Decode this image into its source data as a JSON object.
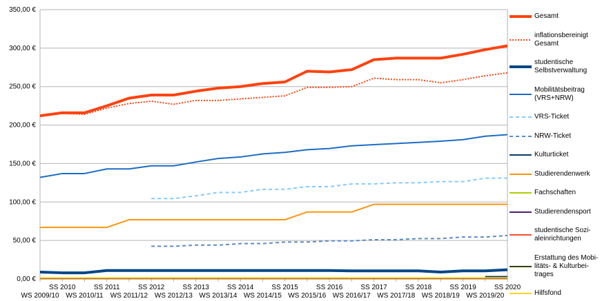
{
  "chart_data": {
    "type": "line",
    "categories": [
      "WS 2009/10",
      "SS 2010",
      "WS 2010/11",
      "SS 2011",
      "WS 2011/12",
      "SS 2012",
      "WS 2012/13",
      "SS 2013",
      "WS 2013/14",
      "SS 2014",
      "WS 2014/15",
      "SS 2015",
      "WS 2015/16",
      "SS 2016",
      "WS 2016/17",
      "SS 2017",
      "WS 2017/18",
      "SS 2018",
      "WS 2018/19",
      "SS 2019",
      "WS 2019/20",
      "SS 2020"
    ],
    "ylim": [
      0,
      350
    ],
    "yticks": [
      {
        "value": 0,
        "label": "0,00 €"
      },
      {
        "value": 50,
        "label": "50,00 €"
      },
      {
        "value": 100,
        "label": "100,00 €"
      },
      {
        "value": 150,
        "label": "150,00 €"
      },
      {
        "value": 200,
        "label": "200,00 €"
      },
      {
        "value": 250,
        "label": "250,00 €"
      },
      {
        "value": 300,
        "label": "300,00 €"
      },
      {
        "value": 350,
        "label": "350,00 €"
      }
    ],
    "grid": true,
    "legend": "right",
    "series": [
      {
        "name": "Gesamt",
        "color": "#ff420e",
        "width": 4,
        "dash": "solid",
        "values": [
          212,
          216,
          216,
          225,
          235,
          239,
          239,
          244,
          248,
          250,
          254,
          256,
          270,
          269,
          272,
          285,
          287,
          287,
          287,
          292,
          298,
          303
        ]
      },
      {
        "name": "inflationsbereinigt\nGesamt",
        "color": "#ff420e",
        "width": 2,
        "dash": "dotted",
        "values": [
          212,
          215,
          214,
          222,
          228,
          231,
          227,
          232,
          232,
          234,
          236,
          238,
          249,
          249,
          250,
          261,
          259,
          259,
          255,
          259,
          264,
          268
        ]
      },
      {
        "name": "studentische\nSelbstverwaltung",
        "color": "#004586",
        "width": 4,
        "dash": "solid",
        "values": [
          9,
          8,
          8,
          11,
          11,
          11,
          11,
          11,
          11,
          11,
          11,
          11,
          11,
          11,
          10.5,
          10.5,
          10.5,
          10.5,
          9,
          10.5,
          10.5,
          12
        ]
      },
      {
        "name": "Mobilitätsbeitrag\n(VRS+NRW)",
        "color": "#1c6cc4",
        "width": 2,
        "dash": "solid",
        "values": [
          132,
          137,
          137,
          143,
          143,
          147,
          147,
          152,
          156.5,
          158.5,
          162.5,
          164.5,
          168,
          169.5,
          173,
          174.5,
          176,
          177.5,
          179,
          181,
          185.5,
          187.5
        ]
      },
      {
        "name": "VRS-Ticket",
        "color": "#83caff",
        "width": 2,
        "dash": "dashed",
        "values": [
          null,
          null,
          null,
          null,
          null,
          104.5,
          104.5,
          108,
          112.5,
          112.5,
          116.5,
          116.5,
          120,
          120,
          123.5,
          123.5,
          125,
          125,
          126.5,
          126.5,
          131,
          131
        ]
      },
      {
        "name": "NRW-Ticket",
        "color": "#5b8ac6",
        "width": 2,
        "dash": "dashed",
        "values": [
          null,
          null,
          null,
          null,
          null,
          42.5,
          42.5,
          44,
          44,
          46,
          46,
          48,
          48,
          49.5,
          49.5,
          51,
          51,
          52.5,
          52.5,
          54.5,
          54.5,
          56.5
        ]
      },
      {
        "name": "Kulturticket",
        "color": "#0d3a6b",
        "width": 2,
        "dash": "solid",
        "values": [
          null,
          null,
          null,
          null,
          null,
          null,
          null,
          null,
          null,
          null,
          null,
          null,
          null,
          null,
          null,
          null,
          null,
          null,
          null,
          null,
          3,
          3
        ]
      },
      {
        "name": "Studierendenwerk",
        "color": "#ff950e",
        "width": 2,
        "dash": "solid",
        "values": [
          67,
          67,
          67,
          67,
          77,
          77,
          77,
          77,
          77,
          77,
          77,
          77,
          87,
          87,
          87,
          97,
          97,
          97,
          97,
          97,
          97,
          97
        ]
      },
      {
        "name": "Fachschaften",
        "color": "#aecf00",
        "width": 2,
        "dash": "solid",
        "values": [
          1,
          1,
          1,
          1,
          1,
          1,
          1,
          1,
          1,
          1,
          1,
          1,
          1,
          1,
          1,
          1,
          1,
          1,
          1,
          1,
          1,
          1
        ]
      },
      {
        "name": "Studierendensport",
        "color": "#4b1f6f",
        "width": 2,
        "dash": "solid",
        "values": [
          0.5,
          0.5,
          0.5,
          0.5,
          0.5,
          0.5,
          0.5,
          0.5,
          0.5,
          0.5,
          0.5,
          0.5,
          0.5,
          0.5,
          0.5,
          0.5,
          0.5,
          0.5,
          0.5,
          0.5,
          0.5,
          0.5
        ]
      },
      {
        "name": "studentische Sozi-\naleinrichtungen",
        "color": "#f0502a",
        "width": 2,
        "dash": "solid",
        "values": [
          0.5,
          0.5,
          0.5,
          0.5,
          0.5,
          0.5,
          0.5,
          0.5,
          0.5,
          0.5,
          0.5,
          0.5,
          0.5,
          0.5,
          0.5,
          0.5,
          0.5,
          0.5,
          0.5,
          0.5,
          0.5,
          0.5
        ]
      },
      {
        "name": "Erstattung des Mobi-\nlitäts- & Kulturbei-\ntrages",
        "color": "#314004",
        "width": 2,
        "dash": "solid",
        "values": [
          1,
          1,
          1,
          1,
          1,
          1,
          1,
          1,
          1,
          1,
          1,
          1,
          1,
          1,
          1,
          1,
          1,
          1,
          1,
          1,
          1,
          1
        ]
      },
      {
        "name": "Hilfsfond",
        "color": "#ffd320",
        "width": 2,
        "dash": "solid",
        "values": [
          1.5,
          1.5,
          1.5,
          1.5,
          1.5,
          1.5,
          1.5,
          1.5,
          1.5,
          1.5,
          1.5,
          1.5,
          1.5,
          1.5,
          1.5,
          1.5,
          1.5,
          1.5,
          1.5,
          1.5,
          1.5,
          1.5
        ]
      }
    ]
  }
}
